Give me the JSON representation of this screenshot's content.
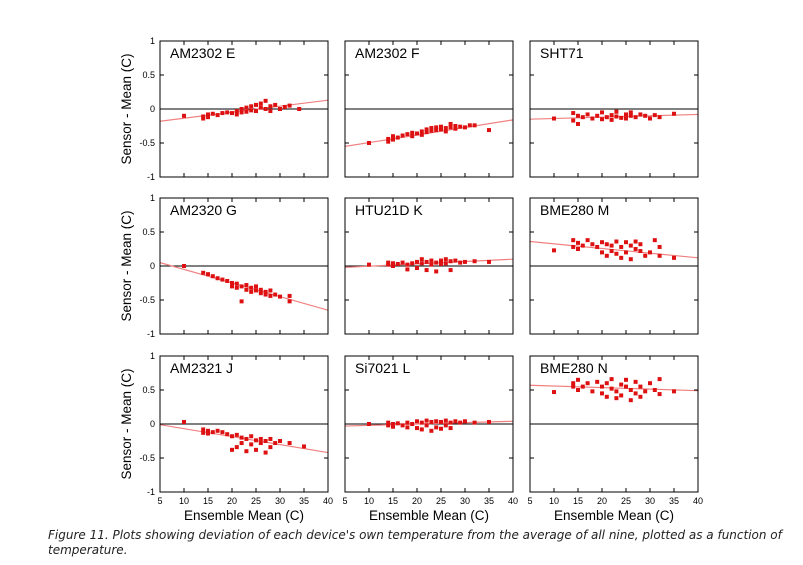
{
  "figure": {
    "caption": "Figure 11. Plots showing deviation of each device's own temperature from the average of all nine, plotted as a function of temperature.",
    "xlabel": "Ensemble Mean (C)",
    "ylabel": "Sensor - Mean (C)"
  },
  "chart_data": {
    "type": "scatter",
    "layout": "3x3 small multiples",
    "xlim": [
      5,
      40
    ],
    "ylim": [
      -1,
      1
    ],
    "xticks": [
      5,
      10,
      15,
      20,
      25,
      30,
      35,
      40
    ],
    "yticks": [
      -1,
      -0.5,
      0,
      0.5,
      1
    ],
    "ytick_labels": [
      "-1",
      "-0.5",
      "0",
      "0.5",
      "1"
    ],
    "grid": false,
    "zero_line": true,
    "point_color": "#dd1111",
    "fit_color": "#f08080",
    "panels": [
      {
        "title": "AM2302 E",
        "fit": [
          [
            5,
            -0.18
          ],
          [
            40,
            0.13
          ]
        ],
        "points": [
          [
            10,
            -0.1
          ],
          [
            14,
            -0.14
          ],
          [
            14,
            -0.11
          ],
          [
            15,
            -0.12
          ],
          [
            15,
            -0.08
          ],
          [
            16,
            -0.07
          ],
          [
            17,
            -0.09
          ],
          [
            18,
            -0.06
          ],
          [
            19,
            -0.05
          ],
          [
            20,
            -0.06
          ],
          [
            21,
            -0.08
          ],
          [
            21,
            -0.03
          ],
          [
            22,
            -0.05
          ],
          [
            22,
            0.0
          ],
          [
            23,
            -0.04
          ],
          [
            23,
            0.02
          ],
          [
            24,
            -0.02
          ],
          [
            24,
            0.04
          ],
          [
            25,
            -0.03
          ],
          [
            25,
            0.06
          ],
          [
            26,
            0.02
          ],
          [
            26,
            0.08
          ],
          [
            27,
            0.0
          ],
          [
            27,
            0.12
          ],
          [
            28,
            0.04
          ],
          [
            28,
            -0.03
          ],
          [
            29,
            0.06
          ],
          [
            30,
            0.0
          ],
          [
            31,
            0.03
          ],
          [
            32,
            0.05
          ],
          [
            34,
            0.0
          ]
        ]
      },
      {
        "title": "AM2302 F",
        "fit": [
          [
            5,
            -0.55
          ],
          [
            40,
            -0.16
          ]
        ],
        "points": [
          [
            10,
            -0.5
          ],
          [
            14,
            -0.48
          ],
          [
            14,
            -0.44
          ],
          [
            15,
            -0.45
          ],
          [
            15,
            -0.4
          ],
          [
            16,
            -0.42
          ],
          [
            17,
            -0.39
          ],
          [
            18,
            -0.37
          ],
          [
            19,
            -0.4
          ],
          [
            19,
            -0.35
          ],
          [
            20,
            -0.36
          ],
          [
            21,
            -0.33
          ],
          [
            21,
            -0.38
          ],
          [
            22,
            -0.34
          ],
          [
            22,
            -0.3
          ],
          [
            23,
            -0.32
          ],
          [
            23,
            -0.28
          ],
          [
            24,
            -0.31
          ],
          [
            24,
            -0.27
          ],
          [
            25,
            -0.3
          ],
          [
            25,
            -0.26
          ],
          [
            26,
            -0.28
          ],
          [
            26,
            -0.33
          ],
          [
            27,
            -0.27
          ],
          [
            27,
            -0.22
          ],
          [
            28,
            -0.29
          ],
          [
            28,
            -0.25
          ],
          [
            29,
            -0.26
          ],
          [
            30,
            -0.27
          ],
          [
            31,
            -0.24
          ],
          [
            32,
            -0.24
          ],
          [
            35,
            -0.31
          ]
        ]
      },
      {
        "title": "SHT71",
        "fit": [
          [
            5,
            -0.15
          ],
          [
            40,
            -0.08
          ]
        ],
        "points": [
          [
            10,
            -0.14
          ],
          [
            14,
            -0.17
          ],
          [
            14,
            -0.06
          ],
          [
            15,
            -0.1
          ],
          [
            15,
            -0.22
          ],
          [
            16,
            -0.12
          ],
          [
            17,
            -0.08
          ],
          [
            18,
            -0.14
          ],
          [
            19,
            -0.1
          ],
          [
            20,
            -0.15
          ],
          [
            20,
            -0.05
          ],
          [
            21,
            -0.12
          ],
          [
            22,
            -0.09
          ],
          [
            22,
            -0.16
          ],
          [
            23,
            -0.11
          ],
          [
            23,
            -0.04
          ],
          [
            24,
            -0.13
          ],
          [
            25,
            -0.08
          ],
          [
            25,
            -0.14
          ],
          [
            26,
            -0.1
          ],
          [
            26,
            -0.05
          ],
          [
            27,
            -0.12
          ],
          [
            28,
            -0.08
          ],
          [
            29,
            -0.1
          ],
          [
            30,
            -0.14
          ],
          [
            31,
            -0.09
          ],
          [
            32,
            -0.12
          ],
          [
            35,
            -0.07
          ]
        ]
      },
      {
        "title": "AM2320 G",
        "fit": [
          [
            5,
            0.05
          ],
          [
            40,
            -0.65
          ]
        ],
        "points": [
          [
            10,
            0.0
          ],
          [
            14,
            -0.1
          ],
          [
            15,
            -0.12
          ],
          [
            16,
            -0.15
          ],
          [
            17,
            -0.18
          ],
          [
            18,
            -0.2
          ],
          [
            19,
            -0.22
          ],
          [
            20,
            -0.25
          ],
          [
            20,
            -0.3
          ],
          [
            21,
            -0.26
          ],
          [
            21,
            -0.32
          ],
          [
            22,
            -0.3
          ],
          [
            22,
            -0.52
          ],
          [
            23,
            -0.28
          ],
          [
            23,
            -0.35
          ],
          [
            24,
            -0.32
          ],
          [
            24,
            -0.38
          ],
          [
            25,
            -0.3
          ],
          [
            25,
            -0.36
          ],
          [
            26,
            -0.35
          ],
          [
            26,
            -0.4
          ],
          [
            27,
            -0.38
          ],
          [
            27,
            -0.42
          ],
          [
            28,
            -0.36
          ],
          [
            28,
            -0.44
          ],
          [
            29,
            -0.42
          ],
          [
            30,
            -0.45
          ],
          [
            32,
            -0.44
          ],
          [
            32,
            -0.52
          ]
        ]
      },
      {
        "title": "HTU21D K",
        "fit": [
          [
            5,
            -0.02
          ],
          [
            40,
            0.1
          ]
        ],
        "points": [
          [
            10,
            0.02
          ],
          [
            14,
            0.02
          ],
          [
            14,
            0.05
          ],
          [
            15,
            0.0
          ],
          [
            15,
            0.04
          ],
          [
            16,
            0.03
          ],
          [
            17,
            0.05
          ],
          [
            18,
            0.02
          ],
          [
            18,
            -0.05
          ],
          [
            19,
            0.04
          ],
          [
            20,
            0.06
          ],
          [
            20,
            -0.03
          ],
          [
            21,
            0.04
          ],
          [
            21,
            0.1
          ],
          [
            22,
            0.06
          ],
          [
            22,
            -0.06
          ],
          [
            23,
            0.08
          ],
          [
            23,
            0.02
          ],
          [
            24,
            0.05
          ],
          [
            24,
            -0.08
          ],
          [
            25,
            0.08
          ],
          [
            25,
            0.03
          ],
          [
            26,
            0.1
          ],
          [
            26,
            0.04
          ],
          [
            27,
            0.07
          ],
          [
            27,
            -0.06
          ],
          [
            28,
            0.08
          ],
          [
            29,
            0.05
          ],
          [
            30,
            0.06
          ],
          [
            32,
            0.07
          ],
          [
            35,
            0.06
          ]
        ]
      },
      {
        "title": "BME280 M",
        "fit": [
          [
            5,
            0.36
          ],
          [
            40,
            0.12
          ]
        ],
        "points": [
          [
            10,
            0.23
          ],
          [
            14,
            0.38
          ],
          [
            14,
            0.28
          ],
          [
            15,
            0.34
          ],
          [
            15,
            0.25
          ],
          [
            16,
            0.3
          ],
          [
            17,
            0.38
          ],
          [
            18,
            0.32
          ],
          [
            19,
            0.28
          ],
          [
            20,
            0.35
          ],
          [
            20,
            0.2
          ],
          [
            21,
            0.32
          ],
          [
            21,
            0.15
          ],
          [
            22,
            0.3
          ],
          [
            22,
            0.22
          ],
          [
            23,
            0.36
          ],
          [
            23,
            0.18
          ],
          [
            24,
            0.28
          ],
          [
            24,
            0.12
          ],
          [
            25,
            0.35
          ],
          [
            25,
            0.2
          ],
          [
            26,
            0.3
          ],
          [
            26,
            0.1
          ],
          [
            27,
            0.36
          ],
          [
            27,
            0.25
          ],
          [
            28,
            0.22
          ],
          [
            28,
            0.32
          ],
          [
            29,
            0.15
          ],
          [
            30,
            0.2
          ],
          [
            31,
            0.38
          ],
          [
            32,
            0.28
          ],
          [
            32,
            0.15
          ],
          [
            35,
            0.12
          ]
        ]
      },
      {
        "title": "AM2321 J",
        "fit": [
          [
            5,
            -0.01
          ],
          [
            40,
            -0.42
          ]
        ],
        "points": [
          [
            10,
            0.03
          ],
          [
            14,
            -0.08
          ],
          [
            14,
            -0.13
          ],
          [
            15,
            -0.1
          ],
          [
            15,
            -0.14
          ],
          [
            16,
            -0.12
          ],
          [
            17,
            -0.1
          ],
          [
            18,
            -0.12
          ],
          [
            19,
            -0.15
          ],
          [
            20,
            -0.18
          ],
          [
            20,
            -0.38
          ],
          [
            21,
            -0.16
          ],
          [
            21,
            -0.34
          ],
          [
            22,
            -0.2
          ],
          [
            22,
            -0.28
          ],
          [
            23,
            -0.22
          ],
          [
            23,
            -0.4
          ],
          [
            24,
            -0.18
          ],
          [
            24,
            -0.3
          ],
          [
            25,
            -0.24
          ],
          [
            25,
            -0.38
          ],
          [
            26,
            -0.22
          ],
          [
            26,
            -0.28
          ],
          [
            27,
            -0.25
          ],
          [
            27,
            -0.42
          ],
          [
            28,
            -0.22
          ],
          [
            28,
            -0.34
          ],
          [
            29,
            -0.28
          ],
          [
            30,
            -0.25
          ],
          [
            32,
            -0.28
          ],
          [
            35,
            -0.33
          ]
        ]
      },
      {
        "title": "Si7021 L",
        "fit": [
          [
            5,
            -0.03
          ],
          [
            40,
            0.04
          ]
        ],
        "points": [
          [
            10,
            0.0
          ],
          [
            14,
            -0.02
          ],
          [
            14,
            0.02
          ],
          [
            15,
            0.0
          ],
          [
            15,
            -0.04
          ],
          [
            16,
            0.01
          ],
          [
            17,
            -0.02
          ],
          [
            18,
            0.02
          ],
          [
            18,
            -0.05
          ],
          [
            19,
            0.0
          ],
          [
            20,
            0.04
          ],
          [
            20,
            -0.06
          ],
          [
            21,
            0.02
          ],
          [
            21,
            -0.08
          ],
          [
            22,
            0.05
          ],
          [
            22,
            -0.02
          ],
          [
            23,
            0.03
          ],
          [
            23,
            -0.1
          ],
          [
            24,
            0.04
          ],
          [
            24,
            -0.05
          ],
          [
            25,
            0.03
          ],
          [
            25,
            -0.07
          ],
          [
            26,
            0.05
          ],
          [
            26,
            -0.02
          ],
          [
            27,
            0.02
          ],
          [
            27,
            -0.06
          ],
          [
            28,
            0.04
          ],
          [
            29,
            0.02
          ],
          [
            30,
            0.04
          ],
          [
            32,
            0.02
          ],
          [
            35,
            0.03
          ]
        ]
      },
      {
        "title": "BME280 N",
        "fit": [
          [
            5,
            0.57
          ],
          [
            40,
            0.49
          ]
        ],
        "points": [
          [
            10,
            0.47
          ],
          [
            14,
            0.55
          ],
          [
            14,
            0.6
          ],
          [
            15,
            0.5
          ],
          [
            15,
            0.65
          ],
          [
            16,
            0.55
          ],
          [
            17,
            0.6
          ],
          [
            18,
            0.48
          ],
          [
            19,
            0.62
          ],
          [
            20,
            0.45
          ],
          [
            20,
            0.55
          ],
          [
            21,
            0.6
          ],
          [
            21,
            0.4
          ],
          [
            22,
            0.52
          ],
          [
            22,
            0.66
          ],
          [
            23,
            0.38
          ],
          [
            23,
            0.48
          ],
          [
            24,
            0.58
          ],
          [
            24,
            0.42
          ],
          [
            25,
            0.55
          ],
          [
            25,
            0.65
          ],
          [
            26,
            0.35
          ],
          [
            26,
            0.5
          ],
          [
            27,
            0.62
          ],
          [
            27,
            0.45
          ],
          [
            28,
            0.4
          ],
          [
            28,
            0.55
          ],
          [
            29,
            0.48
          ],
          [
            30,
            0.6
          ],
          [
            31,
            0.5
          ],
          [
            32,
            0.66
          ],
          [
            32,
            0.44
          ],
          [
            35,
            0.48
          ]
        ]
      }
    ]
  }
}
